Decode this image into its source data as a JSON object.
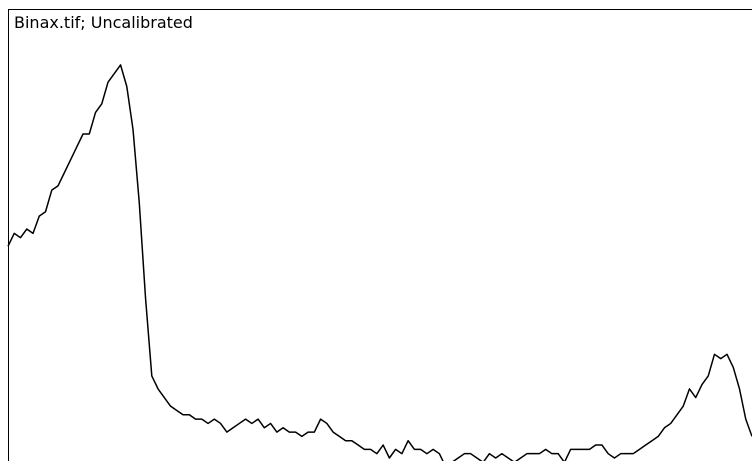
{
  "window": {
    "title": "Binax.tif; Uncalibrated"
  },
  "chart_data": {
    "type": "line",
    "title": "Binax.tif; Uncalibrated",
    "xlabel": "",
    "ylabel": "",
    "grid": false,
    "series": [
      {
        "values": [
          0.49,
          0.52,
          0.51,
          0.53,
          0.52,
          0.56,
          0.57,
          0.62,
          0.63,
          0.66,
          0.69,
          0.72,
          0.75,
          0.75,
          0.8,
          0.82,
          0.87,
          0.89,
          0.91,
          0.86,
          0.76,
          0.59,
          0.37,
          0.19,
          0.16,
          0.14,
          0.12,
          0.11,
          0.1,
          0.1,
          0.09,
          0.09,
          0.08,
          0.09,
          0.08,
          0.06,
          0.07,
          0.08,
          0.09,
          0.08,
          0.09,
          0.07,
          0.08,
          0.06,
          0.07,
          0.06,
          0.06,
          0.05,
          0.06,
          0.06,
          0.09,
          0.08,
          0.06,
          0.05,
          0.04,
          0.04,
          0.03,
          0.02,
          0.02,
          0.01,
          0.03,
          0.0,
          0.02,
          0.01,
          0.04,
          0.02,
          0.02,
          0.01,
          0.02,
          0.01,
          -0.02,
          -0.01,
          0.0,
          0.01,
          0.01,
          0.0,
          -0.01,
          0.01,
          0.0,
          0.01,
          0.0,
          -0.01,
          0.0,
          0.01,
          0.01,
          0.01,
          0.02,
          0.01,
          0.01,
          -0.01,
          0.02,
          0.02,
          0.02,
          0.02,
          0.03,
          0.03,
          0.01,
          0.0,
          0.01,
          0.01,
          0.01,
          0.02,
          0.03,
          0.04,
          0.05,
          0.07,
          0.08,
          0.1,
          0.12,
          0.16,
          0.14,
          0.17,
          0.19,
          0.24,
          0.23,
          0.24,
          0.21,
          0.16,
          0.09,
          0.05
        ]
      }
    ],
    "ylim": [
      0,
      1
    ],
    "line_color": "#000000"
  }
}
